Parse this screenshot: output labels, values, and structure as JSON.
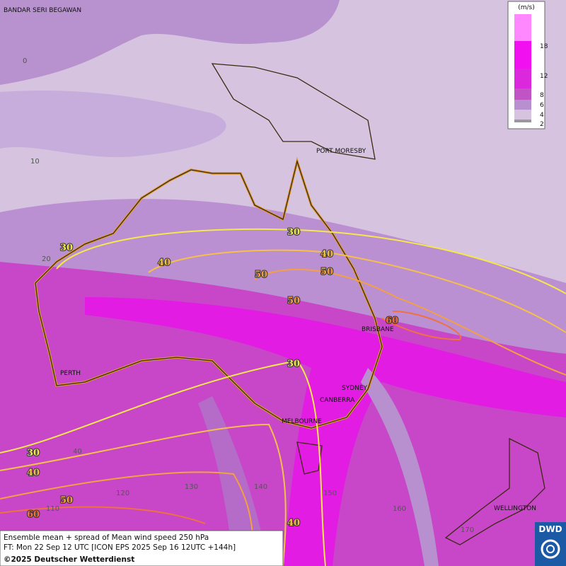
{
  "map": {
    "cities": [
      "BANDAR SERI BEGAWAN",
      "PORT MORESBY",
      "BRISBANE",
      "PERTH",
      "SYDNEY",
      "CANBERRA",
      "MELBOURNE",
      "WELLINGTON"
    ],
    "graticule_labels": [
      "0",
      "10",
      "20",
      "40",
      "110",
      "120",
      "130",
      "140",
      "150",
      "160",
      "170"
    ],
    "contour_labels": [
      "30",
      "30",
      "40",
      "40",
      "50",
      "50",
      "50",
      "60",
      "30",
      "30",
      "40",
      "50",
      "60",
      "40"
    ]
  },
  "legend": {
    "unit": "(m/s)",
    "labels": [
      "18",
      "12",
      "8",
      "6",
      "4",
      "2"
    ]
  },
  "caption": {
    "lines": [
      "Ensemble mean + spread of Mean wind speed 250 hPa",
      "FT: Mon 22 Sep 12 UTC [ICON EPS 2025 Sep 16 12UTC +144h]",
      "©2025 Deutscher Wetterdienst"
    ]
  },
  "logo": "DWD"
}
